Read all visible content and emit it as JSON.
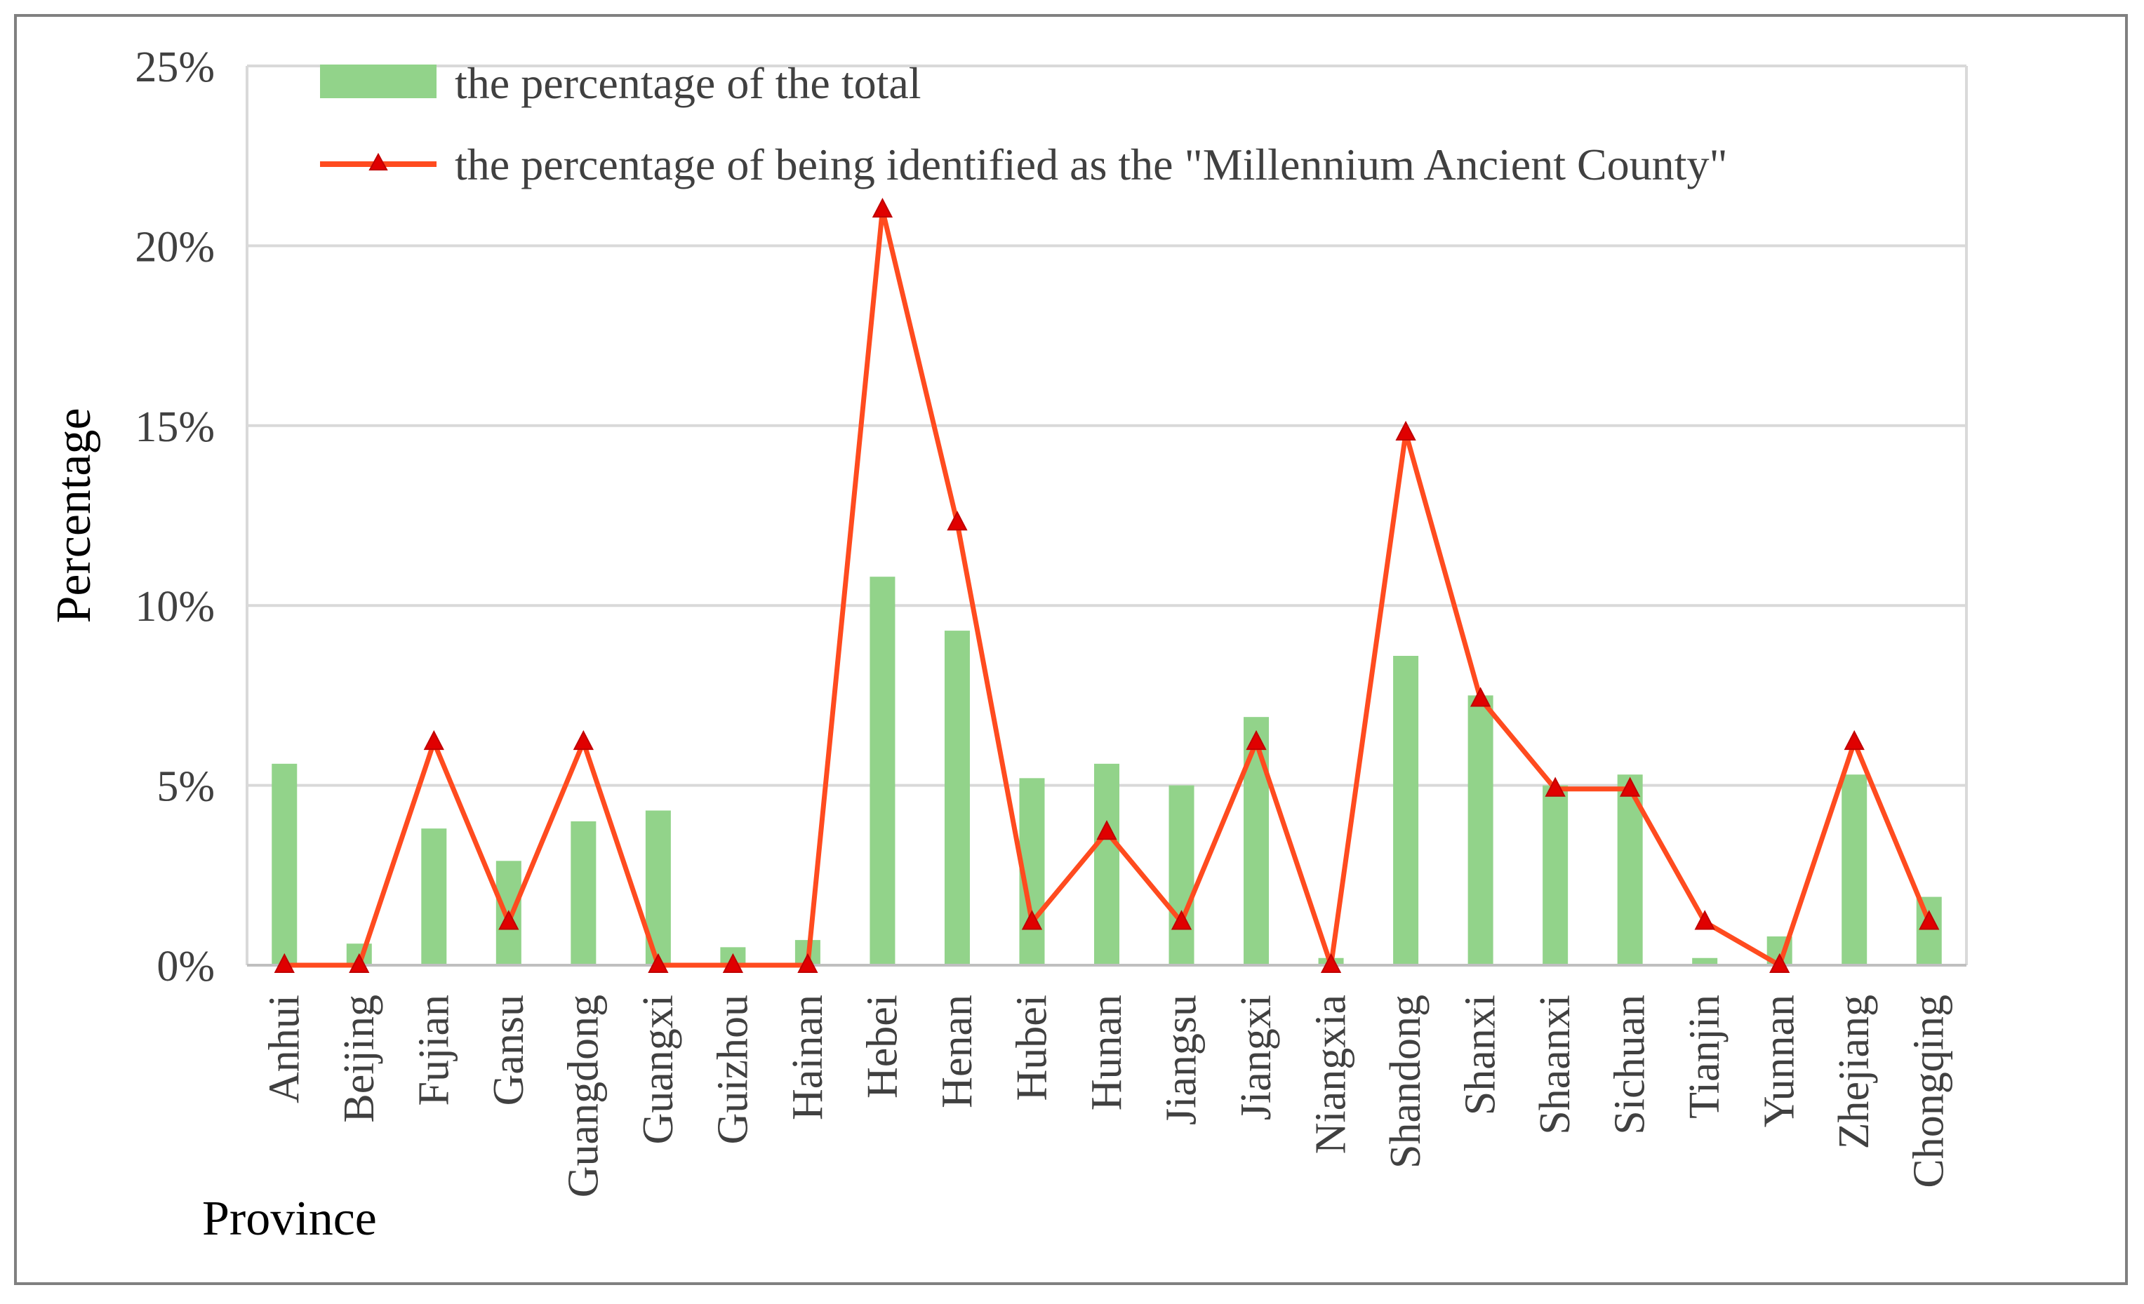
{
  "chart_data": {
    "type": "bar+line",
    "title": "",
    "xlabel": "Province",
    "ylabel": "Percentage",
    "ylim": [
      0,
      25
    ],
    "yticks": [
      "0%",
      "5%",
      "10%",
      "15%",
      "20%",
      "25%"
    ],
    "ytick_values": [
      0,
      5,
      10,
      15,
      20,
      25
    ],
    "grid": "horizontal",
    "legend_position": "top",
    "categories": [
      "Anhui",
      "Beijing",
      "Fujian",
      "Gansu",
      "Guangdong",
      "Guangxi",
      "Guizhou",
      "Hainan",
      "Hebei",
      "Henan",
      "Hubei",
      "Hunan",
      "Jiangsu",
      "Jiangxi",
      "Niangxia",
      "Shandong",
      "Shanxi",
      "Shaanxi",
      "Sichuan",
      "Tianjin",
      "Yunnan",
      "Zhejiang",
      "Chongqing"
    ],
    "series": [
      {
        "name": "the percentage of the total",
        "kind": "bar",
        "color": "#92d38a",
        "values": [
          5.6,
          0.6,
          3.8,
          2.9,
          4.0,
          4.3,
          0.5,
          0.7,
          10.8,
          9.3,
          5.2,
          5.6,
          5.0,
          6.9,
          0.2,
          8.6,
          7.5,
          5.0,
          5.3,
          0.2,
          0.8,
          5.3,
          1.9
        ]
      },
      {
        "name": "the percentage of being identified as the \"Millennium Ancient County\"",
        "kind": "line",
        "color": "#ff4b1f",
        "marker_color": "#e00000",
        "values": [
          0.0,
          0.0,
          6.2,
          1.2,
          6.2,
          0.0,
          0.0,
          0.0,
          21.0,
          12.3,
          1.2,
          3.7,
          1.2,
          6.2,
          0.0,
          14.8,
          7.4,
          4.9,
          4.9,
          1.2,
          0.0,
          6.2,
          1.2
        ]
      }
    ]
  }
}
